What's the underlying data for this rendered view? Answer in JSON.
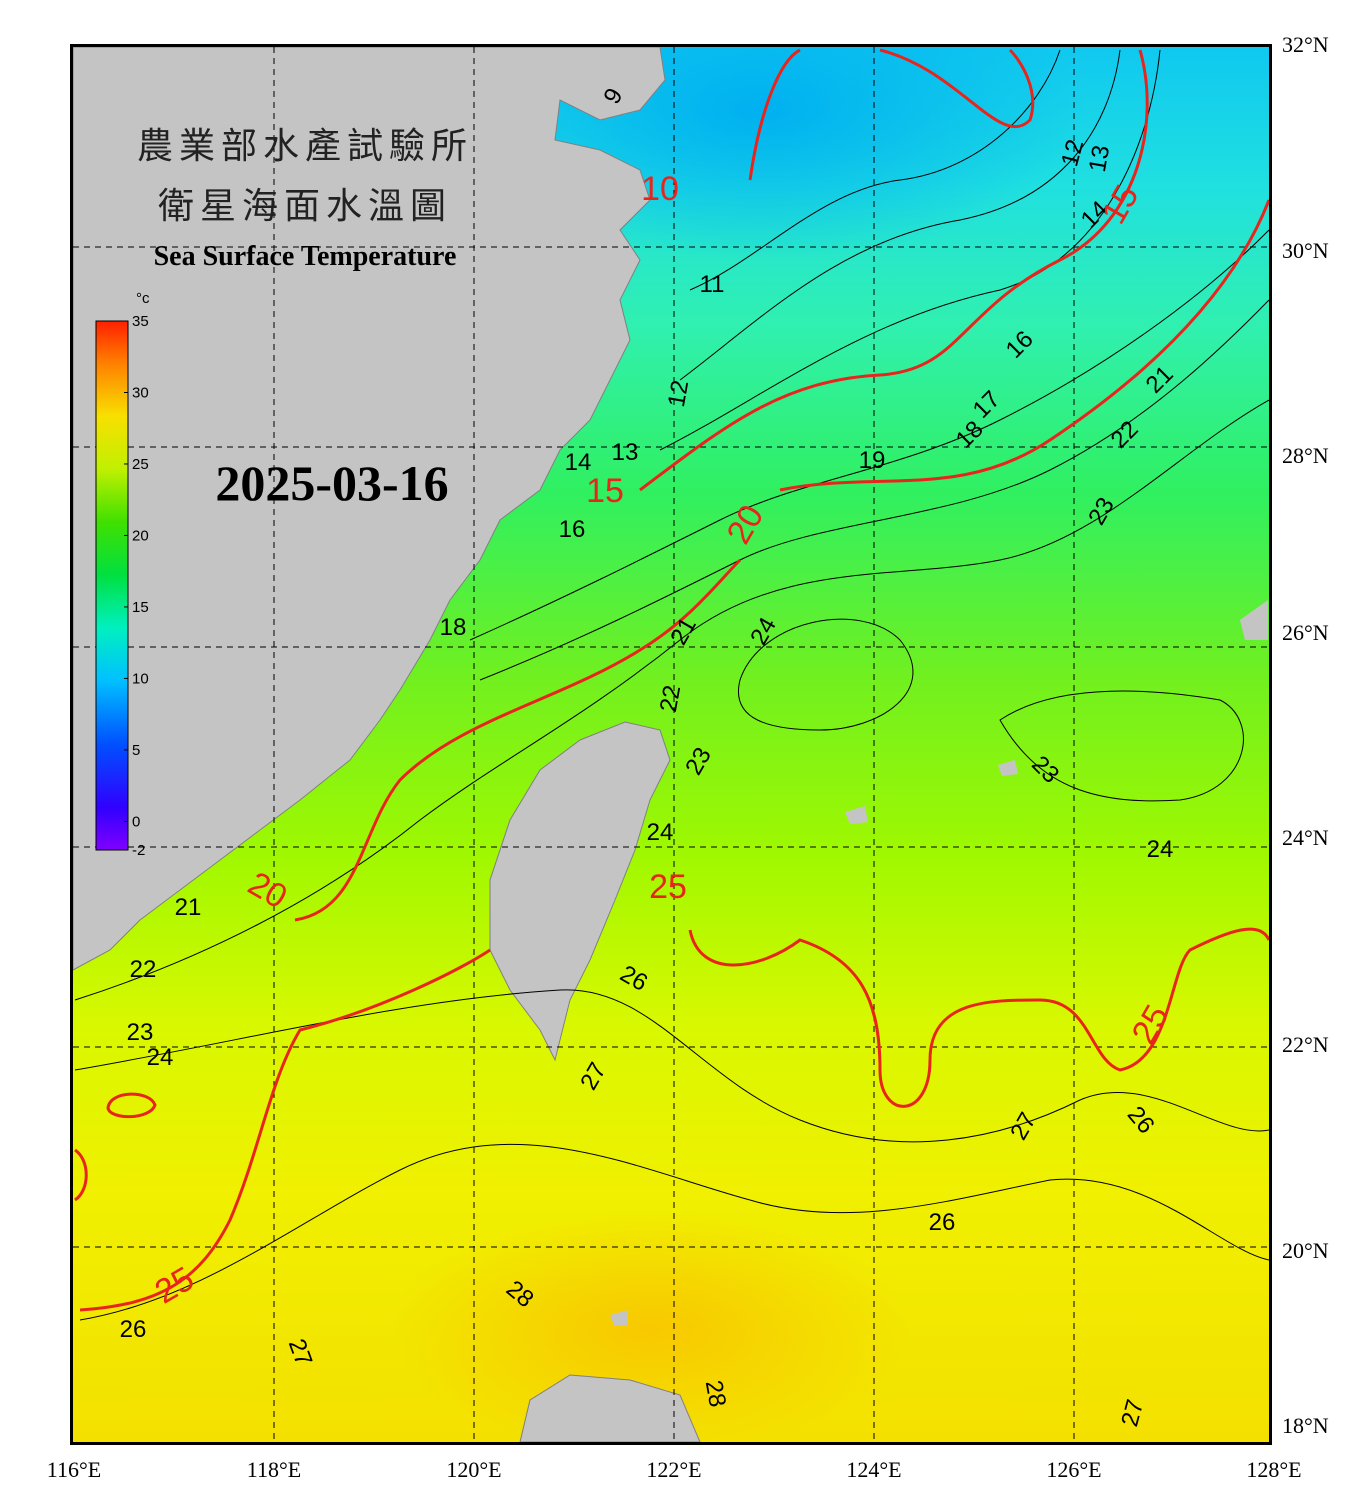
{
  "header": {
    "title_line1": "農業部水產試驗所",
    "title_line2": "衛星海面水溫圖",
    "title_en": "Sea Surface Temperature",
    "date": "2025-03-16"
  },
  "colorbar": {
    "unit": "°c",
    "ticks": [
      "35",
      "30",
      "25",
      "20",
      "15",
      "10",
      "5",
      "0",
      "-2"
    ],
    "range": [
      -2,
      35
    ]
  },
  "axes": {
    "longitude_labels": [
      "116°E",
      "118°E",
      "120°E",
      "122°E",
      "124°E",
      "126°E",
      "128°E"
    ],
    "latitude_labels": [
      "32°N",
      "30°N",
      "28°N",
      "26°N",
      "24°N",
      "22°N",
      "20°N",
      "18°N"
    ]
  },
  "isotherm_labels": {
    "black": [
      "9",
      "11",
      "12",
      "12",
      "13",
      "13",
      "14",
      "14",
      "16",
      "16",
      "17",
      "18",
      "18",
      "19",
      "21",
      "21",
      "21",
      "22",
      "22",
      "22",
      "23",
      "23",
      "23",
      "23",
      "24",
      "24",
      "24",
      "24",
      "26",
      "26",
      "26",
      "26",
      "27",
      "27",
      "27",
      "27",
      "28",
      "28"
    ],
    "red": [
      "10",
      "15",
      "15",
      "20",
      "20",
      "25",
      "25",
      "25"
    ]
  },
  "colors": {
    "land": "#c4c4c4",
    "isotherm_major": "#e8251c",
    "isotherm_minor": "#000000",
    "frame": "#000000"
  }
}
